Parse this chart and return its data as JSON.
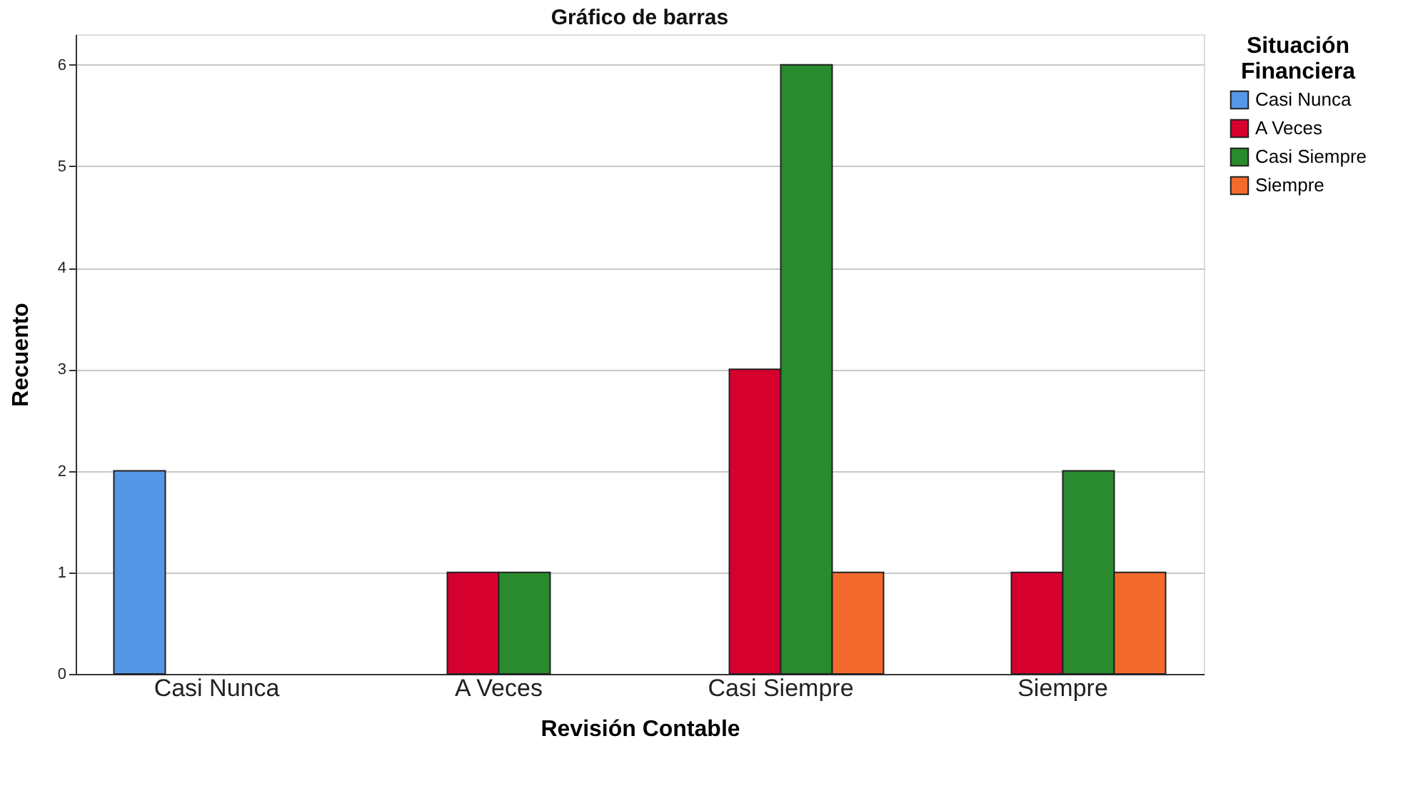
{
  "chart_data": {
    "type": "bar",
    "title": "Gráfico de barras",
    "xlabel": "Revisión Contable",
    "ylabel": "Recuento",
    "legend_title": "Situación Financiera",
    "categories": [
      "Casi Nunca",
      "A Veces",
      "Casi Siempre",
      "Siempre"
    ],
    "series": [
      {
        "name": "Casi Nunca",
        "color": "#5596e6",
        "values": [
          2,
          null,
          null,
          null
        ]
      },
      {
        "name": "A Veces",
        "color": "#d6002f",
        "values": [
          null,
          1,
          3,
          1
        ]
      },
      {
        "name": "Casi Siempre",
        "color": "#2a8a2e",
        "values": [
          null,
          1,
          6,
          2
        ]
      },
      {
        "name": "Siempre",
        "color": "#f26b2d",
        "values": [
          null,
          null,
          1,
          1
        ]
      }
    ],
    "ylim": [
      0,
      6.3
    ],
    "yticks": [
      0,
      1,
      2,
      3,
      4,
      5,
      6
    ],
    "grid": "y",
    "legend": "top right"
  }
}
